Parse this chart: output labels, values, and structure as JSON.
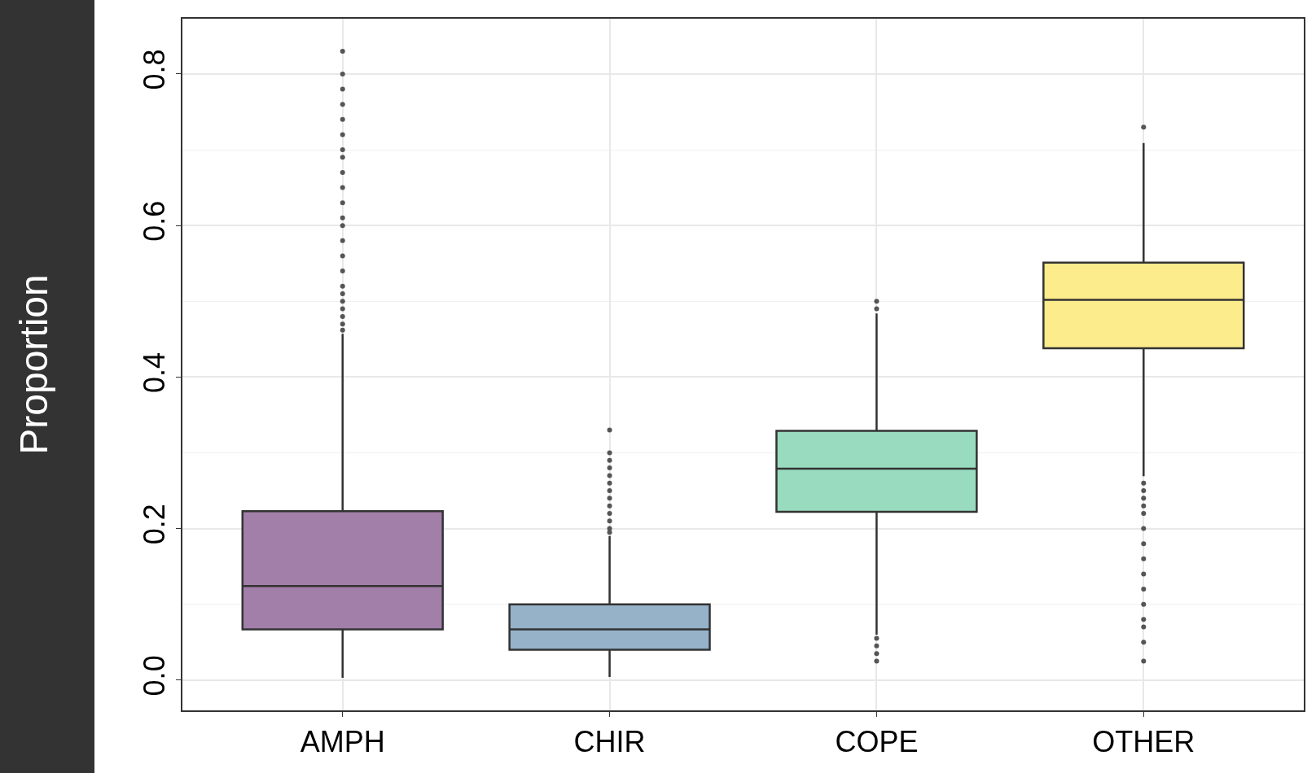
{
  "chart_data": {
    "type": "box",
    "ylabel": "Proportion",
    "categories": [
      "AMPH",
      "CHIR",
      "COPE",
      "OTHER"
    ],
    "colors": [
      "#a27fa8",
      "#95b2c9",
      "#99dbbe",
      "#fdec8b"
    ],
    "boxes": [
      {
        "low": 0.003,
        "q1": 0.067,
        "median": 0.124,
        "q3": 0.223,
        "high": 0.457,
        "outliers": [
          0.462,
          0.47,
          0.48,
          0.49,
          0.5,
          0.51,
          0.52,
          0.54,
          0.56,
          0.58,
          0.6,
          0.61,
          0.63,
          0.65,
          0.67,
          0.69,
          0.7,
          0.72,
          0.74,
          0.76,
          0.78,
          0.8,
          0.83
        ]
      },
      {
        "low": 0.004,
        "q1": 0.04,
        "median": 0.067,
        "q3": 0.1,
        "high": 0.19,
        "outliers": [
          0.195,
          0.2,
          0.21,
          0.22,
          0.23,
          0.24,
          0.25,
          0.26,
          0.27,
          0.28,
          0.29,
          0.3,
          0.33
        ]
      },
      {
        "low": 0.06,
        "q1": 0.222,
        "median": 0.279,
        "q3": 0.329,
        "high": 0.484,
        "outliers": [
          0.49,
          0.5,
          0.055,
          0.045,
          0.035,
          0.025
        ]
      },
      {
        "low": 0.269,
        "q1": 0.438,
        "median": 0.502,
        "q3": 0.551,
        "high": 0.709,
        "outliers": [
          0.73,
          0.26,
          0.25,
          0.24,
          0.23,
          0.22,
          0.2,
          0.18,
          0.16,
          0.14,
          0.12,
          0.1,
          0.08,
          0.07,
          0.05,
          0.025
        ]
      }
    ],
    "ylim": [
      -0.04,
      0.873
    ],
    "yticks": [
      {
        "value": 0,
        "label": "0.0"
      },
      0.2,
      0.4,
      0.6,
      0.8
    ],
    "grid": true
  }
}
